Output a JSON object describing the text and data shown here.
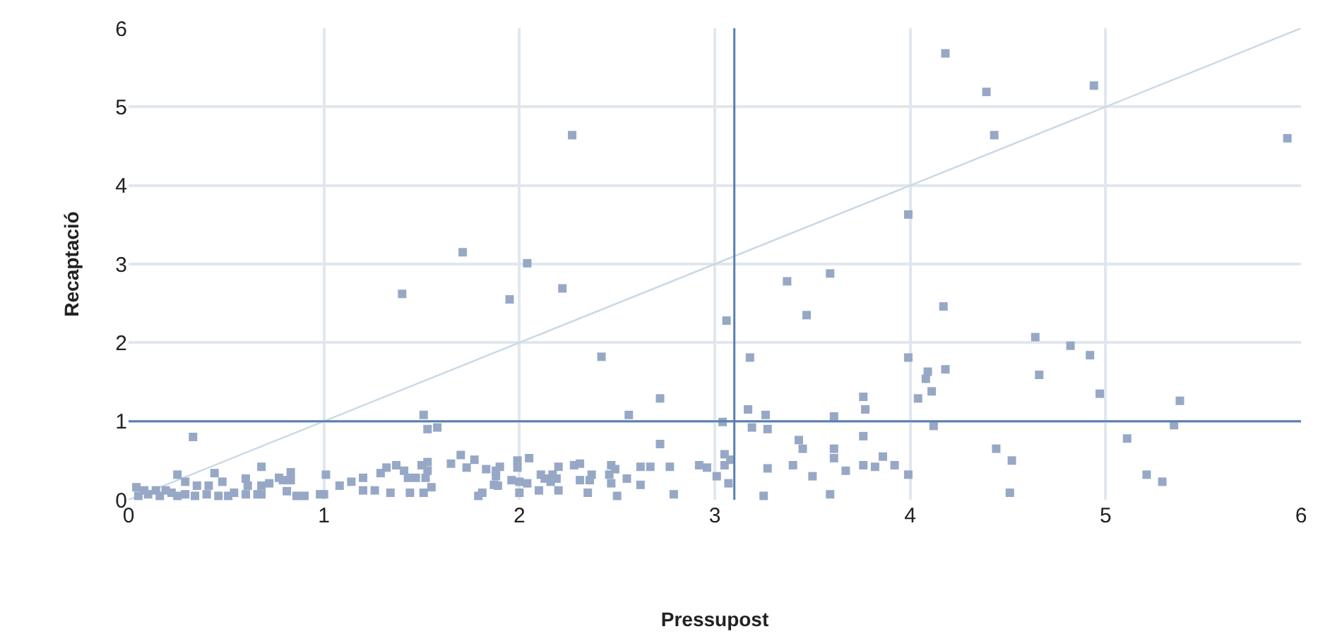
{
  "chart_data": {
    "type": "scatter",
    "xlabel": "Pressupost",
    "ylabel": "Recaptació",
    "xlim": [
      0,
      6
    ],
    "ylim": [
      0,
      6
    ],
    "xticks": [
      0,
      1,
      2,
      3,
      4,
      5,
      6
    ],
    "yticks": [
      0,
      1,
      2,
      3,
      4,
      5,
      6
    ],
    "grid": true,
    "series": [
      {
        "marker": "square",
        "color": "#97a8c6",
        "x": [
          1.4,
          1.71,
          1.95,
          2.04,
          2.22,
          2.27,
          2.42,
          2.56,
          2.72,
          3.06,
          3.18,
          3.37,
          3.47,
          3.59,
          3.99,
          4.18,
          4.39,
          4.43,
          4.94,
          5.93,
          4.17,
          4.64,
          4.82,
          4.92,
          4.66,
          4.97,
          5.38,
          3.99,
          4.09,
          4.08,
          4.18,
          4.11,
          4.04,
          3.76,
          3.77,
          3.17,
          3.26,
          3.61,
          1.51,
          5.35,
          4.12,
          5.11,
          4.44,
          4.52,
          4.51,
          5.21,
          5.29,
          3.99,
          3.86,
          3.82,
          3.92,
          3.04,
          3.19,
          3.27,
          3.76,
          3.43,
          3.45,
          3.61,
          3.61,
          2.72,
          3.05,
          3.08,
          3.05,
          3.01,
          3.07,
          3.27,
          3.4,
          3.5,
          3.67,
          3.76,
          3.25,
          3.59,
          2.92,
          2.96,
          2.79,
          2.77,
          2.67,
          2.62,
          2.62,
          2.55,
          2.47,
          2.49,
          2.46,
          2.47,
          2.5,
          2.37,
          2.36,
          2.35,
          2.31,
          2.28,
          2.31,
          2.2,
          2.2,
          2.17,
          2.19,
          2.13,
          2.11,
          2.16,
          2.1,
          2.05,
          2.04,
          2.0,
          2.0,
          1.99,
          1.99,
          1.96,
          1.9,
          1.88,
          1.88,
          1.83,
          1.87,
          1.89,
          1.81,
          1.79,
          1.53,
          1.58,
          0.33,
          0.68,
          0.83,
          0.44,
          0.25,
          1.01,
          1.32,
          1.37,
          1.41,
          1.5,
          1.53,
          1.53,
          1.65,
          1.7,
          1.77,
          1.73,
          1.29,
          1.47,
          1.52,
          1.43,
          1.55,
          1.51,
          1.44,
          1.34,
          1.26,
          1.2,
          1.2,
          1.14,
          1.08,
          0.98,
          1.0,
          0.9,
          0.86,
          0.81,
          0.79,
          0.83,
          0.77,
          0.72,
          0.68,
          0.68,
          0.66,
          0.6,
          0.6,
          0.61,
          0.54,
          0.51,
          0.48,
          0.46,
          0.41,
          0.4,
          0.35,
          0.34,
          0.29,
          0.29,
          0.25,
          0.22,
          0.19,
          0.16,
          0.14,
          0.1,
          0.08,
          0.04,
          0.05
        ],
        "values": [
          2.62,
          3.15,
          2.55,
          3.01,
          2.69,
          4.64,
          1.82,
          1.08,
          1.29,
          2.28,
          1.81,
          2.78,
          2.35,
          2.88,
          3.63,
          5.68,
          5.19,
          4.64,
          5.27,
          4.6,
          2.46,
          2.07,
          1.96,
          1.84,
          1.59,
          1.35,
          1.26,
          1.81,
          1.63,
          1.54,
          1.66,
          1.38,
          1.29,
          1.31,
          1.15,
          1.15,
          1.08,
          1.06,
          1.08,
          0.95,
          0.94,
          0.78,
          0.65,
          0.5,
          0.09,
          0.32,
          0.23,
          0.32,
          0.55,
          0.42,
          0.44,
          0.99,
          0.92,
          0.9,
          0.81,
          0.76,
          0.65,
          0.65,
          0.53,
          0.71,
          0.58,
          0.51,
          0.44,
          0.3,
          0.21,
          0.4,
          0.44,
          0.3,
          0.37,
          0.44,
          0.05,
          0.07,
          0.44,
          0.41,
          0.07,
          0.42,
          0.42,
          0.42,
          0.19,
          0.27,
          0.44,
          0.39,
          0.32,
          0.21,
          0.05,
          0.32,
          0.25,
          0.09,
          0.46,
          0.44,
          0.25,
          0.42,
          0.12,
          0.32,
          0.27,
          0.27,
          0.32,
          0.23,
          0.12,
          0.53,
          0.21,
          0.23,
          0.09,
          0.5,
          0.41,
          0.25,
          0.42,
          0.37,
          0.3,
          0.39,
          0.19,
          0.18,
          0.09,
          0.05,
          0.9,
          0.92,
          0.8,
          0.42,
          0.35,
          0.34,
          0.32,
          0.32,
          0.41,
          0.44,
          0.37,
          0.44,
          0.48,
          0.37,
          0.46,
          0.57,
          0.51,
          0.41,
          0.34,
          0.28,
          0.28,
          0.28,
          0.16,
          0.09,
          0.09,
          0.09,
          0.12,
          0.12,
          0.28,
          0.23,
          0.18,
          0.07,
          0.07,
          0.05,
          0.05,
          0.11,
          0.25,
          0.25,
          0.28,
          0.21,
          0.18,
          0.07,
          0.07,
          0.27,
          0.07,
          0.18,
          0.09,
          0.05,
          0.23,
          0.05,
          0.18,
          0.07,
          0.18,
          0.05,
          0.23,
          0.07,
          0.05,
          0.09,
          0.12,
          0.05,
          0.12,
          0.07,
          0.12,
          0.16,
          0.05
        ]
      },
      {
        "type": "line",
        "marker": "none",
        "color": "#c9d8e6",
        "x": [
          0,
          6
        ],
        "values": [
          0,
          6
        ]
      }
    ],
    "ref_lines": [
      {
        "axis": "x",
        "value": 3.1,
        "color": "#5b7fb0"
      },
      {
        "axis": "y",
        "value": 1,
        "color": "#5b7fb0"
      }
    ]
  }
}
